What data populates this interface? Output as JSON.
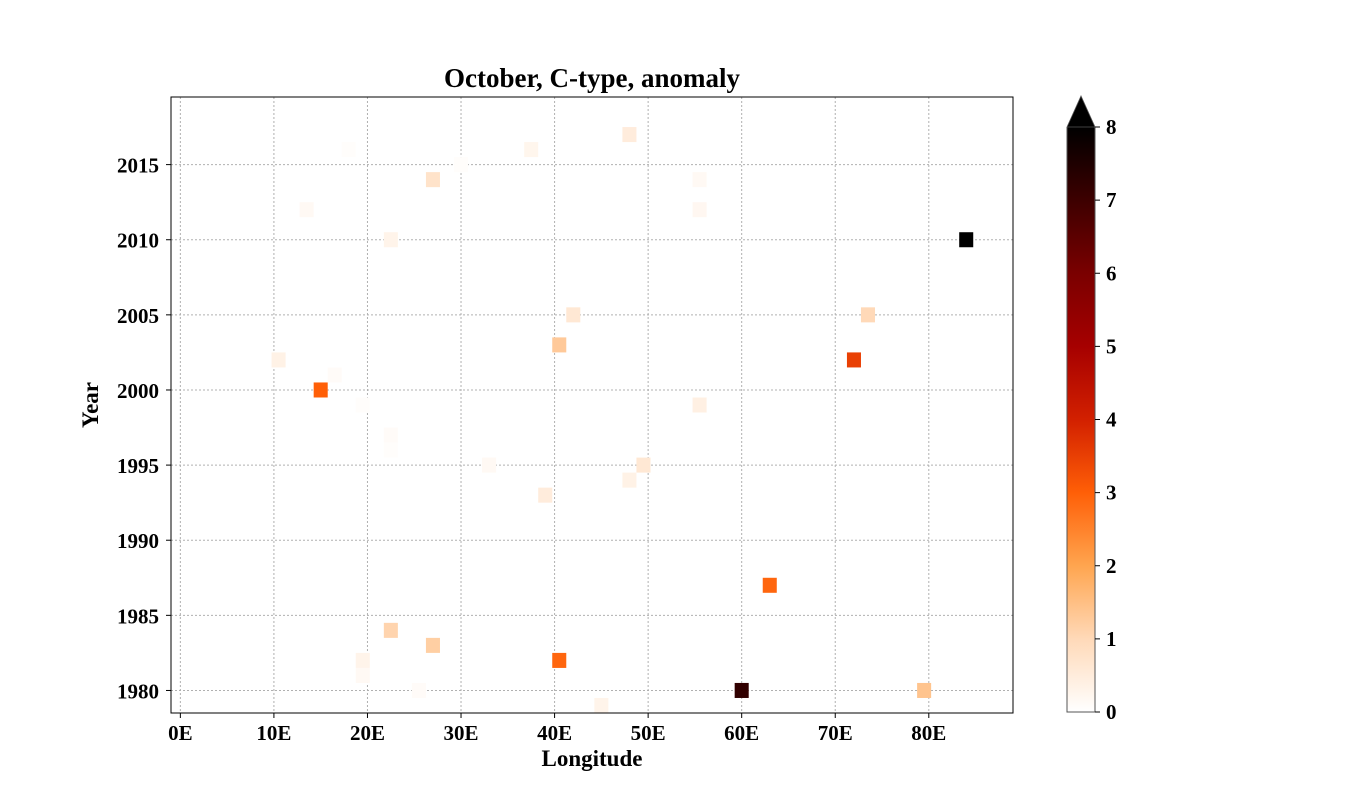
{
  "chart_data": {
    "type": "heatmap",
    "title": "October, C-type, anomaly",
    "xlabel": "Longitude",
    "ylabel": "Year",
    "xlim": [
      -1,
      89
    ],
    "ylim": [
      1978.5,
      2019.5
    ],
    "x_ticks": [
      0,
      10,
      20,
      30,
      40,
      50,
      60,
      70,
      80
    ],
    "x_tick_labels": [
      "0E",
      "10E",
      "20E",
      "30E",
      "40E",
      "50E",
      "60E",
      "70E",
      "80E"
    ],
    "y_ticks": [
      1980,
      1985,
      1990,
      1995,
      2000,
      2005,
      2010,
      2015
    ],
    "y_tick_labels": [
      "1980",
      "1985",
      "1990",
      "1995",
      "2000",
      "2005",
      "2010",
      "2015"
    ],
    "grid": true,
    "colorbar": {
      "min": 0,
      "max": 8,
      "ticks": [
        "0",
        "1",
        "2",
        "3",
        "4",
        "5",
        "6",
        "7",
        "8"
      ],
      "extend": "max",
      "colormap": "gist_heat_r"
    },
    "cell_width_deg": 1.5,
    "points": [
      {
        "lon": 48.0,
        "year": 2017,
        "value": 0.5
      },
      {
        "lon": 18.0,
        "year": 2016,
        "value": 0.05
      },
      {
        "lon": 37.5,
        "year": 2016,
        "value": 0.25
      },
      {
        "lon": 30.0,
        "year": 2015,
        "value": 0.05
      },
      {
        "lon": 27.0,
        "year": 2014,
        "value": 0.75
      },
      {
        "lon": 55.5,
        "year": 2014,
        "value": 0.15
      },
      {
        "lon": 13.5,
        "year": 2012,
        "value": 0.15
      },
      {
        "lon": 55.5,
        "year": 2012,
        "value": 0.2
      },
      {
        "lon": 22.5,
        "year": 2010,
        "value": 0.3
      },
      {
        "lon": 84.0,
        "year": 2010,
        "value": 8.0
      },
      {
        "lon": 42.0,
        "year": 2005,
        "value": 0.6
      },
      {
        "lon": 73.5,
        "year": 2005,
        "value": 1.0
      },
      {
        "lon": 40.5,
        "year": 2003,
        "value": 1.3
      },
      {
        "lon": 10.5,
        "year": 2002,
        "value": 0.35
      },
      {
        "lon": 72.0,
        "year": 2002,
        "value": 3.5
      },
      {
        "lon": 16.5,
        "year": 2001,
        "value": 0.1
      },
      {
        "lon": 15.0,
        "year": 2000,
        "value": 3.0
      },
      {
        "lon": 19.5,
        "year": 1999,
        "value": 0.05
      },
      {
        "lon": 55.5,
        "year": 1999,
        "value": 0.4
      },
      {
        "lon": 22.5,
        "year": 1997,
        "value": 0.1
      },
      {
        "lon": 22.5,
        "year": 1996,
        "value": 0.05
      },
      {
        "lon": 33.0,
        "year": 1995,
        "value": 0.15
      },
      {
        "lon": 49.5,
        "year": 1995,
        "value": 0.6
      },
      {
        "lon": 48.0,
        "year": 1994,
        "value": 0.35
      },
      {
        "lon": 39.0,
        "year": 1993,
        "value": 0.5
      },
      {
        "lon": 63.0,
        "year": 1987,
        "value": 2.9
      },
      {
        "lon": 22.5,
        "year": 1984,
        "value": 1.1
      },
      {
        "lon": 27.0,
        "year": 1983,
        "value": 1.2
      },
      {
        "lon": 19.5,
        "year": 1982,
        "value": 0.3
      },
      {
        "lon": 40.5,
        "year": 1982,
        "value": 2.9
      },
      {
        "lon": 19.5,
        "year": 1981,
        "value": 0.15
      },
      {
        "lon": 25.5,
        "year": 1980,
        "value": 0.1
      },
      {
        "lon": 60.0,
        "year": 1980,
        "value": 7.2
      },
      {
        "lon": 79.5,
        "year": 1980,
        "value": 1.4
      },
      {
        "lon": 45.0,
        "year": 1979,
        "value": 0.3
      }
    ]
  }
}
